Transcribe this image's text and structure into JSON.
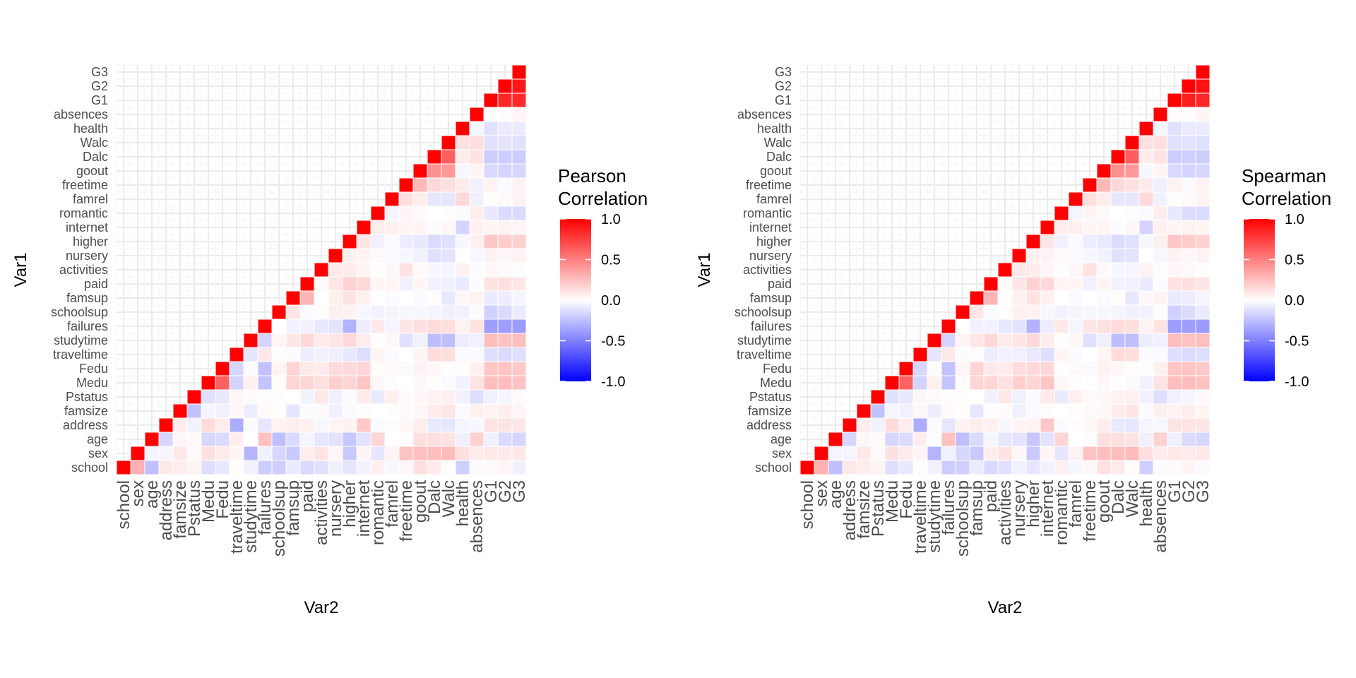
{
  "chart_data": [
    {
      "type": "heatmap",
      "title": "",
      "xlabel": "Var2",
      "ylabel": "Var1",
      "variables": [
        "school",
        "sex",
        "age",
        "address",
        "famsize",
        "Pstatus",
        "Medu",
        "Fedu",
        "traveltime",
        "studytime",
        "failures",
        "schoolsup",
        "famsup",
        "paid",
        "activities",
        "nursery",
        "higher",
        "internet",
        "romantic",
        "famrel",
        "freetime",
        "goout",
        "Dalc",
        "Walc",
        "health",
        "absences",
        "G1",
        "G2",
        "G3"
      ],
      "legend": {
        "title_lines": [
          "Pearson",
          "Correlation"
        ],
        "tick_labels": [
          "1.0",
          "0.5",
          "0.0",
          "-0.5",
          "-1.0"
        ],
        "tick_values": [
          1.0,
          0.5,
          0.0,
          -0.5,
          -1.0
        ],
        "placement": "right"
      },
      "color_scale": {
        "low": "#0000FF",
        "mid": "#FFFFFF",
        "high": "#FF0000",
        "limits": [
          -1,
          1
        ]
      },
      "grid": true,
      "upper_triangle": [
        [
          1.0,
          0.31,
          -0.25,
          0.09,
          0.07,
          0.05,
          -0.13,
          -0.09,
          0.01,
          -0.05,
          -0.2,
          -0.19,
          -0.08,
          -0.15,
          -0.12,
          -0.06,
          -0.1,
          -0.05,
          0.06,
          -0.03,
          0.03,
          0.12,
          0.08,
          0.01,
          -0.19,
          -0.02,
          0.02,
          0.04,
          -0.05
        ],
        [
          1.0,
          -0.04,
          -0.04,
          0.09,
          0.02,
          0.12,
          0.08,
          0.04,
          -0.29,
          -0.05,
          -0.16,
          -0.21,
          0.07,
          0.11,
          0.03,
          -0.21,
          0.04,
          -0.1,
          0.05,
          0.24,
          0.25,
          0.26,
          0.27,
          0.12,
          0.08,
          0.09,
          0.08,
          0.09
        ],
        [
          1.0,
          -0.16,
          0.03,
          0.02,
          -0.16,
          -0.14,
          0.07,
          -0.0,
          0.24,
          -0.25,
          -0.14,
          -0.04,
          -0.1,
          -0.11,
          -0.22,
          -0.11,
          0.16,
          0.0,
          0.01,
          0.13,
          0.13,
          0.11,
          -0.06,
          0.18,
          -0.06,
          -0.14,
          -0.16
        ],
        [
          1.0,
          0.07,
          -0.05,
          0.14,
          0.07,
          -0.32,
          -0.02,
          -0.1,
          0.05,
          0.07,
          0.06,
          -0.03,
          0.04,
          0.05,
          0.22,
          -0.02,
          0.01,
          0.03,
          0.07,
          -0.09,
          -0.1,
          -0.04,
          -0.03,
          0.11,
          0.11,
          0.1
        ],
        [
          1.0,
          -0.24,
          -0.04,
          -0.06,
          0.03,
          -0.07,
          0.02,
          0.01,
          -0.1,
          -0.01,
          0.02,
          -0.06,
          -0.02,
          0.01,
          -0.0,
          0.01,
          0.02,
          0.03,
          0.08,
          0.1,
          -0.02,
          0.06,
          0.05,
          0.07,
          0.04
        ],
        [
          1.0,
          -0.12,
          -0.09,
          0.03,
          0.02,
          0.01,
          0.01,
          0.0,
          -0.05,
          0.09,
          -0.06,
          -0.01,
          0.08,
          -0.08,
          0.06,
          0.02,
          0.03,
          0.05,
          0.06,
          -0.05,
          -0.13,
          -0.06,
          -0.04,
          0.02
        ],
        [
          1.0,
          0.62,
          -0.17,
          0.06,
          -0.23,
          0.01,
          0.17,
          0.16,
          0.12,
          0.19,
          0.17,
          0.23,
          0.03,
          0.01,
          0.0,
          0.03,
          0.01,
          -0.02,
          -0.05,
          0.11,
          0.26,
          0.26,
          0.24
        ],
        [
          1.0,
          -0.16,
          -0.01,
          -0.24,
          0.04,
          0.17,
          0.09,
          0.08,
          0.14,
          0.15,
          0.16,
          0.01,
          0.02,
          -0.02,
          0.05,
          0.03,
          0.01,
          0.01,
          0.06,
          0.23,
          0.23,
          0.21
        ],
        [
          1.0,
          -0.1,
          0.09,
          -0.01,
          -0.01,
          -0.07,
          -0.05,
          -0.06,
          -0.09,
          -0.13,
          0.04,
          -0.02,
          0.0,
          0.04,
          0.14,
          0.13,
          -0.02,
          -0.02,
          -0.13,
          -0.14,
          -0.13
        ],
        [
          1.0,
          -0.17,
          0.04,
          0.1,
          0.15,
          0.08,
          0.1,
          0.15,
          0.07,
          0.01,
          0.03,
          -0.12,
          -0.06,
          -0.26,
          -0.25,
          -0.07,
          -0.06,
          0.26,
          0.24,
          0.25
        ],
        [
          1.0,
          0.0,
          -0.05,
          -0.05,
          -0.09,
          -0.11,
          -0.3,
          -0.07,
          0.09,
          -0.04,
          0.1,
          0.12,
          0.14,
          0.13,
          0.05,
          0.11,
          -0.38,
          -0.38,
          -0.39
        ],
        [
          1.0,
          0.1,
          -0.02,
          0.01,
          0.06,
          0.05,
          -0.03,
          -0.05,
          -0.04,
          -0.03,
          -0.03,
          -0.04,
          -0.06,
          -0.05,
          -0.01,
          -0.18,
          -0.14,
          -0.08
        ],
        [
          1.0,
          0.29,
          0.0,
          0.06,
          0.11,
          0.06,
          0.0,
          -0.02,
          0.0,
          -0.02,
          0.01,
          -0.09,
          0.03,
          0.05,
          -0.08,
          -0.07,
          -0.04
        ],
        [
          1.0,
          0.02,
          0.1,
          0.18,
          0.15,
          0.04,
          0.04,
          -0.06,
          0.04,
          -0.05,
          -0.06,
          -0.08,
          -0.01,
          0.11,
          0.12,
          0.1
        ],
        [
          1.0,
          0.09,
          0.08,
          0.04,
          0.01,
          0.03,
          0.11,
          0.02,
          -0.03,
          -0.04,
          0.05,
          -0.01,
          0.03,
          0.02,
          0.01
        ],
        [
          1.0,
          0.06,
          0.05,
          0.02,
          -0.02,
          -0.03,
          -0.05,
          -0.12,
          -0.11,
          0.0,
          -0.03,
          0.05,
          0.03,
          0.05
        ],
        [
          1.0,
          0.1,
          -0.06,
          -0.02,
          -0.07,
          -0.09,
          -0.14,
          -0.12,
          -0.03,
          0.06,
          0.22,
          0.2,
          0.18
        ],
        [
          1.0,
          0.07,
          0.06,
          0.04,
          0.04,
          -0.01,
          0.03,
          -0.17,
          0.06,
          0.04,
          0.05,
          0.04
        ],
        [
          1.0,
          -0.04,
          0.04,
          0.02,
          0.0,
          0.01,
          -0.02,
          0.07,
          -0.09,
          -0.14,
          -0.14
        ],
        [
          1.0,
          0.13,
          0.07,
          -0.1,
          -0.1,
          0.15,
          -0.06,
          0.01,
          0.02,
          0.05
        ],
        [
          1.0,
          0.28,
          0.15,
          0.12,
          0.08,
          -0.06,
          0.05,
          -0.02,
          0.05
        ],
        [
          1.0,
          0.43,
          0.4,
          -0.03,
          0.04,
          -0.15,
          -0.17,
          -0.16
        ],
        [
          1.0,
          0.63,
          0.07,
          0.11,
          -0.2,
          -0.19,
          -0.2
        ],
        [
          1.0,
          0.12,
          0.13,
          -0.12,
          -0.11,
          -0.12
        ],
        [
          1.0,
          -0.04,
          -0.12,
          -0.08,
          -0.08
        ],
        [
          1.0,
          0.01,
          0.01,
          0.04
        ],
        [
          1.0,
          0.85,
          0.83
        ],
        [
          1.0,
          0.91
        ],
        [
          1.0
        ]
      ]
    },
    {
      "type": "heatmap",
      "title": "",
      "xlabel": "Var2",
      "ylabel": "Var1",
      "variables": [
        "school",
        "sex",
        "age",
        "address",
        "famsize",
        "Pstatus",
        "Medu",
        "Fedu",
        "traveltime",
        "studytime",
        "failures",
        "schoolsup",
        "famsup",
        "paid",
        "activities",
        "nursery",
        "higher",
        "internet",
        "romantic",
        "famrel",
        "freetime",
        "goout",
        "Dalc",
        "Walc",
        "health",
        "absences",
        "G1",
        "G2",
        "G3"
      ],
      "legend": {
        "title_lines": [
          "Spearman",
          "Correlation"
        ],
        "tick_labels": [
          "1.0",
          "0.5",
          "0.0",
          "-0.5",
          "-1.0"
        ],
        "tick_values": [
          1.0,
          0.5,
          0.0,
          -0.5,
          -1.0
        ],
        "placement": "right"
      },
      "color_scale": {
        "low": "#0000FF",
        "mid": "#FFFFFF",
        "high": "#FF0000",
        "limits": [
          -1,
          1
        ]
      },
      "grid": true,
      "upper_triangle": [
        [
          1.0,
          0.31,
          -0.25,
          0.09,
          0.07,
          0.05,
          -0.13,
          -0.09,
          0.01,
          -0.05,
          -0.2,
          -0.19,
          -0.08,
          -0.15,
          -0.12,
          -0.06,
          -0.1,
          -0.05,
          0.06,
          -0.03,
          0.03,
          0.12,
          0.08,
          0.01,
          -0.19,
          -0.02,
          0.02,
          0.04,
          -0.02
        ],
        [
          1.0,
          -0.04,
          -0.04,
          0.09,
          0.02,
          0.12,
          0.08,
          0.04,
          -0.29,
          -0.05,
          -0.16,
          -0.21,
          0.07,
          0.11,
          0.03,
          -0.21,
          0.04,
          -0.1,
          0.05,
          0.24,
          0.25,
          0.26,
          0.27,
          0.12,
          0.08,
          0.09,
          0.08,
          0.09
        ],
        [
          1.0,
          -0.16,
          0.03,
          0.02,
          -0.16,
          -0.14,
          0.07,
          -0.0,
          0.24,
          -0.25,
          -0.14,
          -0.04,
          -0.1,
          -0.11,
          -0.22,
          -0.11,
          0.16,
          0.0,
          0.01,
          0.13,
          0.13,
          0.11,
          -0.06,
          0.18,
          -0.06,
          -0.14,
          -0.16
        ],
        [
          1.0,
          0.07,
          -0.05,
          0.14,
          0.07,
          -0.32,
          -0.02,
          -0.1,
          0.05,
          0.07,
          0.06,
          -0.03,
          0.04,
          0.05,
          0.22,
          -0.02,
          0.01,
          0.03,
          0.07,
          -0.09,
          -0.1,
          -0.04,
          -0.03,
          0.11,
          0.11,
          0.1
        ],
        [
          1.0,
          -0.24,
          -0.04,
          -0.06,
          0.03,
          -0.07,
          0.02,
          0.01,
          -0.1,
          -0.01,
          0.02,
          -0.06,
          -0.02,
          0.01,
          -0.0,
          0.01,
          0.02,
          0.03,
          0.08,
          0.1,
          -0.02,
          0.06,
          0.05,
          0.07,
          0.04
        ],
        [
          1.0,
          -0.12,
          -0.09,
          0.03,
          0.02,
          0.01,
          0.01,
          0.0,
          -0.05,
          0.09,
          -0.06,
          -0.01,
          0.08,
          -0.08,
          0.06,
          0.02,
          0.03,
          0.05,
          0.06,
          -0.05,
          -0.13,
          -0.06,
          -0.04,
          0.02
        ],
        [
          1.0,
          0.62,
          -0.17,
          0.06,
          -0.23,
          0.01,
          0.17,
          0.16,
          0.12,
          0.19,
          0.17,
          0.23,
          0.03,
          0.01,
          0.0,
          0.03,
          0.01,
          -0.02,
          -0.05,
          0.11,
          0.26,
          0.26,
          0.24
        ],
        [
          1.0,
          -0.16,
          -0.01,
          -0.24,
          0.04,
          0.17,
          0.09,
          0.08,
          0.14,
          0.15,
          0.16,
          0.01,
          0.02,
          -0.02,
          0.05,
          0.03,
          0.01,
          0.01,
          0.06,
          0.23,
          0.23,
          0.21
        ],
        [
          1.0,
          -0.1,
          0.09,
          -0.01,
          -0.01,
          -0.07,
          -0.05,
          -0.06,
          -0.09,
          -0.13,
          0.04,
          -0.02,
          0.0,
          0.04,
          0.14,
          0.13,
          -0.02,
          -0.02,
          -0.13,
          -0.14,
          -0.13
        ],
        [
          1.0,
          -0.17,
          0.04,
          0.1,
          0.15,
          0.08,
          0.1,
          0.15,
          0.07,
          0.01,
          0.03,
          -0.12,
          -0.06,
          -0.26,
          -0.25,
          -0.07,
          -0.06,
          0.26,
          0.24,
          0.25
        ],
        [
          1.0,
          0.0,
          -0.05,
          -0.05,
          -0.09,
          -0.11,
          -0.3,
          -0.07,
          0.09,
          -0.04,
          0.1,
          0.12,
          0.14,
          0.13,
          0.05,
          0.11,
          -0.38,
          -0.38,
          -0.39
        ],
        [
          1.0,
          0.1,
          -0.02,
          0.01,
          0.06,
          0.05,
          -0.03,
          -0.05,
          -0.04,
          -0.03,
          -0.03,
          -0.04,
          -0.06,
          -0.05,
          -0.01,
          -0.18,
          -0.14,
          -0.08
        ],
        [
          1.0,
          0.29,
          0.0,
          0.06,
          0.11,
          0.06,
          0.0,
          -0.02,
          0.0,
          -0.02,
          0.01,
          -0.09,
          0.03,
          0.05,
          -0.08,
          -0.07,
          -0.04
        ],
        [
          1.0,
          0.02,
          0.1,
          0.18,
          0.15,
          0.04,
          0.04,
          -0.06,
          0.04,
          -0.05,
          -0.06,
          -0.08,
          -0.01,
          0.11,
          0.12,
          0.1
        ],
        [
          1.0,
          0.09,
          0.08,
          0.04,
          0.01,
          0.03,
          0.11,
          0.02,
          -0.03,
          -0.04,
          0.05,
          -0.01,
          0.03,
          0.02,
          0.01
        ],
        [
          1.0,
          0.06,
          0.05,
          0.02,
          -0.02,
          -0.03,
          -0.05,
          -0.12,
          -0.11,
          0.0,
          -0.03,
          0.05,
          0.03,
          0.05
        ],
        [
          1.0,
          0.1,
          -0.06,
          -0.02,
          -0.07,
          -0.09,
          -0.14,
          -0.12,
          -0.03,
          0.06,
          0.22,
          0.2,
          0.18
        ],
        [
          1.0,
          0.07,
          0.06,
          0.04,
          0.04,
          -0.01,
          0.03,
          -0.17,
          0.06,
          0.04,
          0.05,
          0.04
        ],
        [
          1.0,
          -0.04,
          0.04,
          0.02,
          0.0,
          0.01,
          -0.02,
          0.07,
          -0.09,
          -0.14,
          -0.14
        ],
        [
          1.0,
          0.13,
          0.07,
          -0.1,
          -0.1,
          0.15,
          -0.06,
          0.01,
          0.02,
          0.05
        ],
        [
          1.0,
          0.28,
          0.15,
          0.12,
          0.08,
          -0.06,
          0.05,
          -0.02,
          0.05
        ],
        [
          1.0,
          0.43,
          0.4,
          -0.03,
          0.04,
          -0.15,
          -0.17,
          -0.16
        ],
        [
          1.0,
          0.63,
          0.07,
          0.11,
          -0.2,
          -0.19,
          -0.2
        ],
        [
          1.0,
          0.12,
          0.13,
          -0.12,
          -0.11,
          -0.12
        ],
        [
          1.0,
          -0.04,
          -0.12,
          -0.08,
          -0.08
        ],
        [
          1.0,
          0.01,
          0.01,
          0.04
        ],
        [
          1.0,
          0.88,
          0.85
        ],
        [
          1.0,
          0.93
        ],
        [
          1.0
        ]
      ]
    }
  ]
}
